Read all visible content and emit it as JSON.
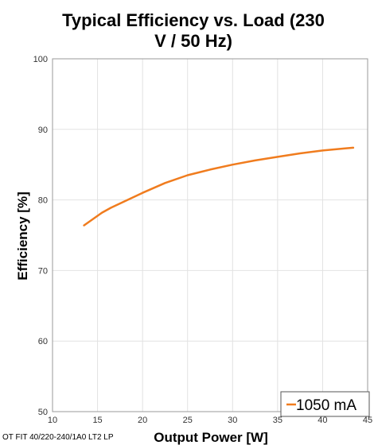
{
  "chart_data": {
    "type": "line",
    "title_lines": [
      "Typical Efficiency vs. Load (230",
      "V / 50 Hz)"
    ],
    "xlabel": "Output Power [W]",
    "ylabel": "Efficiency [%]",
    "product_label": "OT FIT 40/220-240/1A0 LT2 LP",
    "xlim": [
      10,
      45
    ],
    "ylim": [
      50,
      100
    ],
    "x_ticks": [
      10,
      15,
      20,
      25,
      30,
      35,
      40,
      45
    ],
    "y_ticks": [
      50,
      60,
      70,
      80,
      90,
      100
    ],
    "grid": true,
    "legend_position": "bottom-right",
    "series": [
      {
        "name": "1050 mA",
        "color": "#f07c1e",
        "x": [
          13.5,
          14.5,
          15.5,
          16.5,
          18,
          20,
          22.5,
          25,
          27.5,
          30,
          32.5,
          35,
          37.5,
          40,
          42.5,
          43.4
        ],
        "y": [
          76.4,
          77.3,
          78.2,
          78.9,
          79.8,
          81.0,
          82.4,
          83.5,
          84.3,
          85.0,
          85.6,
          86.1,
          86.6,
          87.0,
          87.3,
          87.4
        ]
      }
    ]
  }
}
